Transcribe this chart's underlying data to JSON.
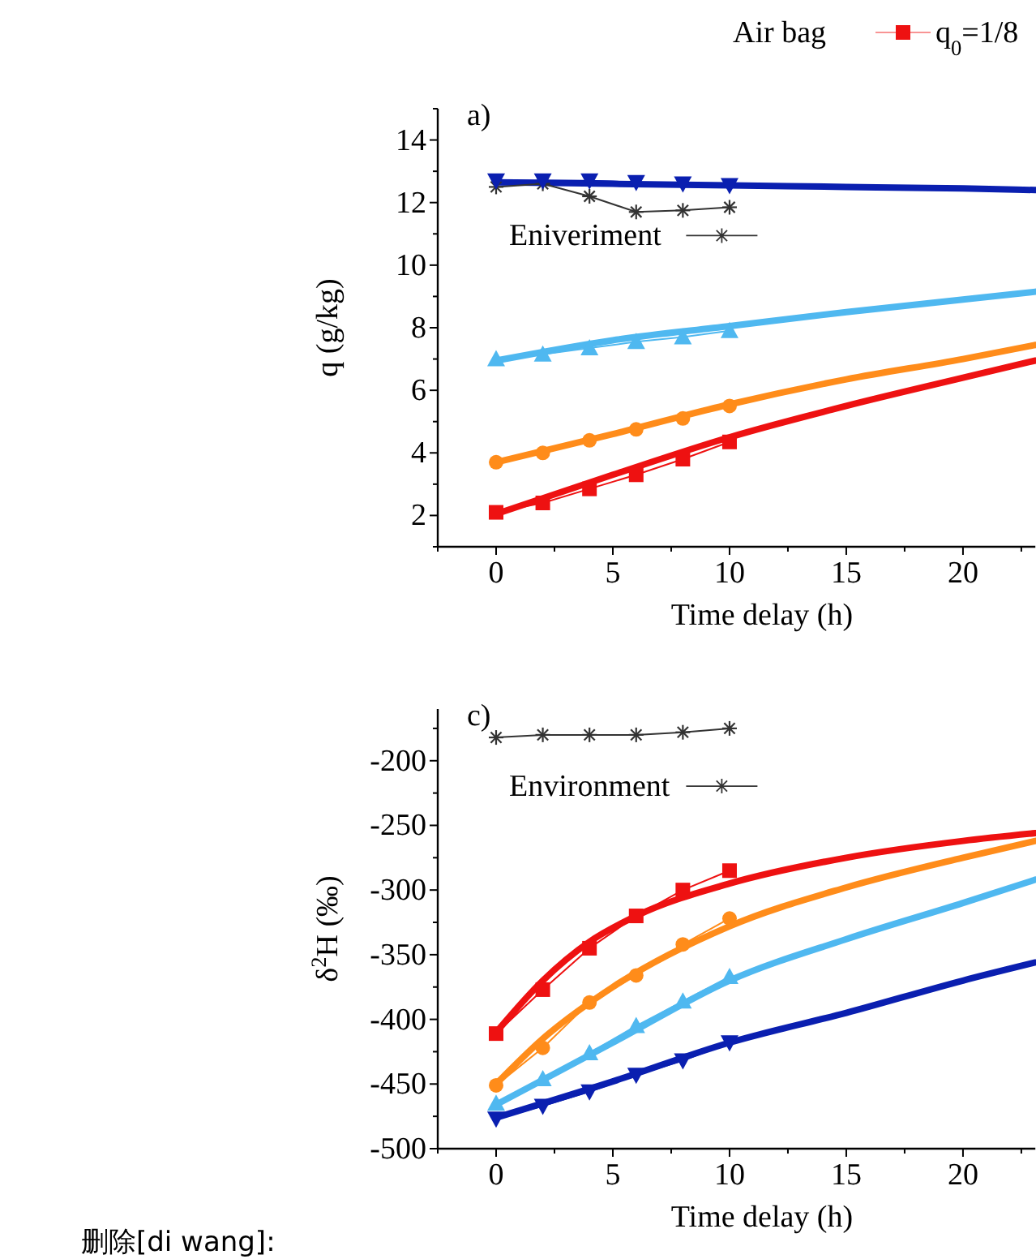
{
  "chart_data": [
    {
      "type": "line",
      "legend": "top",
      "legend_title": "Air bag",
      "xlabel": "Time delay (h)",
      "ylabel": "q (g/kg)",
      "annotations": [
        "a)"
      ],
      "xlim": [
        -2.5,
        23.1
      ],
      "xticks": [
        {
          "value": -2.5,
          "label": null
        },
        0,
        {
          "value": 2.5,
          "label": null
        },
        5,
        {
          "value": 7.5,
          "label": null
        },
        10,
        {
          "value": 12.5,
          "label": null
        },
        15,
        {
          "value": 17.5,
          "label": null
        },
        20,
        {
          "value": 22.5,
          "label": null
        }
      ],
      "ylim": [
        1,
        15
      ],
      "yticks": [
        {
          "value": 1,
          "label": null
        },
        2,
        {
          "value": 3,
          "label": null
        },
        4,
        {
          "value": 5,
          "label": null
        },
        6,
        {
          "value": 7,
          "label": null
        },
        8,
        {
          "value": 9,
          "label": null
        },
        10,
        {
          "value": 11,
          "label": null
        },
        12,
        {
          "value": 13,
          "label": null
        },
        14,
        {
          "value": 15,
          "label": null
        }
      ],
      "series": [
        {
          "color": "#ee1111",
          "marker": "none",
          "x": [
            0,
            5,
            10,
            15,
            20,
            23.1
          ],
          "values": [
            2.05,
            3.3,
            4.5,
            5.5,
            6.4,
            6.95
          ]
        },
        {
          "color": "#ff8c1a",
          "marker": "none",
          "x": [
            0,
            5,
            10,
            15,
            20,
            23.1
          ],
          "values": [
            3.7,
            4.6,
            5.55,
            6.35,
            7.0,
            7.45
          ]
        },
        {
          "color": "#4fb8f0",
          "marker": "none",
          "x": [
            0,
            5,
            10,
            15,
            20,
            23.1
          ],
          "values": [
            6.95,
            7.6,
            8.05,
            8.5,
            8.9,
            9.15
          ]
        },
        {
          "color": "#0a1fb0",
          "marker": "none",
          "x": [
            0,
            5,
            10,
            15,
            20,
            23.1
          ],
          "values": [
            12.65,
            12.6,
            12.55,
            12.5,
            12.45,
            12.4
          ]
        },
        {
          "name": "Eniveriment",
          "color": "#333333",
          "marker": "cross",
          "x": [
            0,
            2,
            4,
            6,
            8,
            10
          ],
          "values": [
            12.5,
            12.6,
            12.2,
            11.7,
            11.75,
            11.85
          ]
        },
        {
          "name": "q$_{0}$=1/8",
          "color": "#ee1111",
          "marker": "square",
          "x": [
            0,
            2,
            4,
            6,
            8,
            10
          ],
          "values": [
            2.1,
            2.4,
            2.85,
            3.3,
            3.8,
            4.35
          ]
        },
        {
          "type": "scatter",
          "color": "#ff8c1a",
          "marker": "circle",
          "x": [
            0,
            2,
            4,
            6,
            8,
            10
          ],
          "values": [
            3.7,
            4.0,
            4.4,
            4.75,
            5.1,
            5.5
          ]
        },
        {
          "color": "#4fb8f0",
          "marker": "triangle",
          "x": [
            0,
            2,
            4,
            6,
            8,
            10
          ],
          "values": [
            7.0,
            7.15,
            7.35,
            7.55,
            7.7,
            7.9
          ]
        },
        {
          "color": "#0a1fb0",
          "marker": "triangle-down",
          "x": [
            0,
            2,
            4,
            6,
            8,
            10
          ],
          "values": [
            12.7,
            12.7,
            12.7,
            12.65,
            12.6,
            12.55
          ]
        }
      ]
    },
    {
      "type": "line",
      "xlabel": "Time delay (h)",
      "ylabel": "δ$^{2}$H (‰)",
      "annotations": [
        "c)",
        "删除[di wang]:"
      ],
      "xlim": [
        -2.5,
        23.1
      ],
      "xticks": [
        {
          "value": -2.5,
          "label": null
        },
        0,
        {
          "value": 2.5,
          "label": null
        },
        5,
        {
          "value": 7.5,
          "label": null
        },
        10,
        {
          "value": 12.5,
          "label": null
        },
        15,
        {
          "value": 17.5,
          "label": null
        },
        20,
        {
          "value": 22.5,
          "label": null
        }
      ],
      "ylim": [
        -500,
        -160
      ],
      "yticks": [
        -500,
        {
          "value": -475,
          "label": null
        },
        -450,
        {
          "value": -425,
          "label": null
        },
        -400,
        {
          "value": -375,
          "label": null
        },
        -350,
        {
          "value": -325,
          "label": null
        },
        -300,
        {
          "value": -275,
          "label": null
        },
        -250,
        {
          "value": -225,
          "label": null
        },
        -200,
        {
          "value": -175,
          "label": null
        }
      ],
      "series": [
        {
          "color": "#ee1111",
          "marker": "none",
          "x": [
            0,
            2,
            4,
            6,
            10,
            15,
            20,
            23.1
          ],
          "values": [
            -410,
            -370,
            -340,
            -320,
            -295,
            -275,
            -262,
            -256
          ]
        },
        {
          "color": "#ff8c1a",
          "marker": "none",
          "x": [
            0,
            2,
            5,
            10,
            15,
            20,
            23.1
          ],
          "values": [
            -450,
            -415,
            -375,
            -328,
            -298,
            -275,
            -262
          ]
        },
        {
          "color": "#4fb8f0",
          "marker": "none",
          "x": [
            0,
            5,
            10,
            15,
            20,
            23.1
          ],
          "values": [
            -466,
            -418,
            -370,
            -338,
            -310,
            -292
          ]
        },
        {
          "color": "#0a1fb0",
          "marker": "none",
          "x": [
            0,
            5,
            10,
            15,
            20,
            23.1
          ],
          "values": [
            -476,
            -448,
            -418,
            -395,
            -370,
            -356
          ]
        },
        {
          "name": "Environment",
          "color": "#333333",
          "marker": "cross",
          "x": [
            0,
            2,
            4,
            6,
            8,
            10
          ],
          "values": [
            -182,
            -180,
            -180,
            -180,
            -178,
            -175
          ]
        },
        {
          "color": "#ee1111",
          "marker": "square",
          "x": [
            0,
            2,
            4,
            6,
            8,
            10
          ],
          "values": [
            -411,
            -377,
            -345,
            -320,
            -300,
            -285
          ]
        },
        {
          "color": "#ff8c1a",
          "marker": "circle",
          "x": [
            0,
            2,
            4,
            6,
            8,
            10
          ],
          "values": [
            -451,
            -422,
            -387,
            -366,
            -342,
            -322
          ]
        },
        {
          "color": "#4fb8f0",
          "marker": "triangle",
          "x": [
            0,
            2,
            4,
            6,
            8,
            10
          ],
          "values": [
            -465,
            -446,
            -426,
            -405,
            -386,
            -367
          ]
        },
        {
          "color": "#0a1fb0",
          "marker": "triangle-down",
          "x": [
            0,
            2,
            4,
            6,
            8,
            10
          ],
          "values": [
            -477,
            -467,
            -456,
            -443,
            -432,
            -418
          ]
        }
      ]
    }
  ]
}
